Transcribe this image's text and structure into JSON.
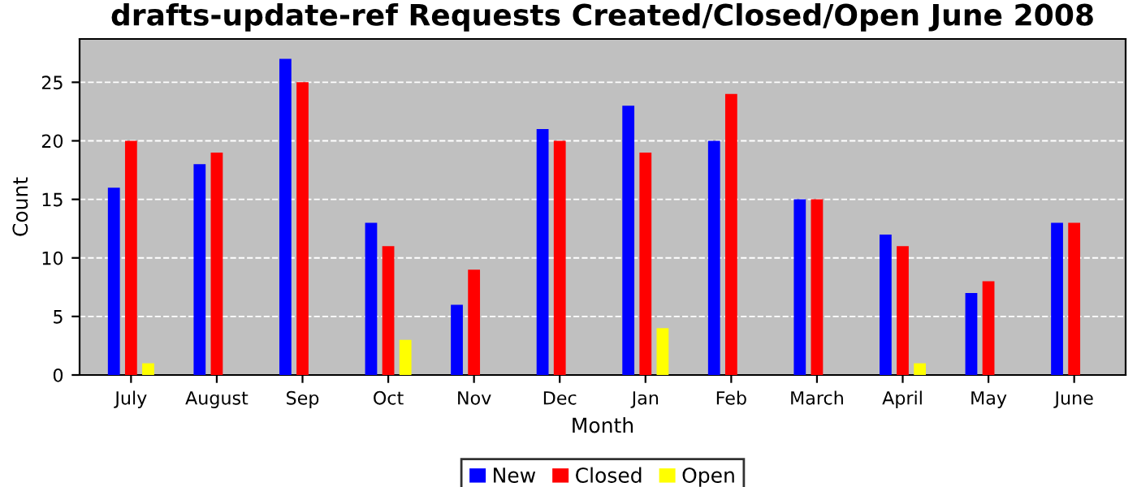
{
  "chart_data": {
    "type": "bar",
    "title": "drafts-update-ref Requests Created/Closed/Open June 2008",
    "xlabel": "Month",
    "ylabel": "Count",
    "categories": [
      "July",
      "August",
      "Sep",
      "Oct",
      "Nov",
      "Dec",
      "Jan",
      "Feb",
      "March",
      "April",
      "May",
      "June"
    ],
    "series": [
      {
        "name": "New",
        "color": "#0000ff",
        "values": [
          16,
          18,
          27,
          13,
          6,
          21,
          23,
          20,
          15,
          12,
          7,
          13
        ]
      },
      {
        "name": "Closed",
        "color": "#ff0000",
        "values": [
          20,
          19,
          25,
          11,
          9,
          20,
          19,
          24,
          15,
          11,
          8,
          13
        ]
      },
      {
        "name": "Open",
        "color": "#ffff00",
        "values": [
          1,
          0,
          0,
          3,
          0,
          0,
          4,
          0,
          0,
          1,
          0,
          0
        ]
      }
    ],
    "ylim": [
      0,
      28.7
    ],
    "yticks": [
      0,
      5,
      10,
      15,
      20,
      25
    ],
    "grid": "y",
    "legend": "bottom"
  }
}
